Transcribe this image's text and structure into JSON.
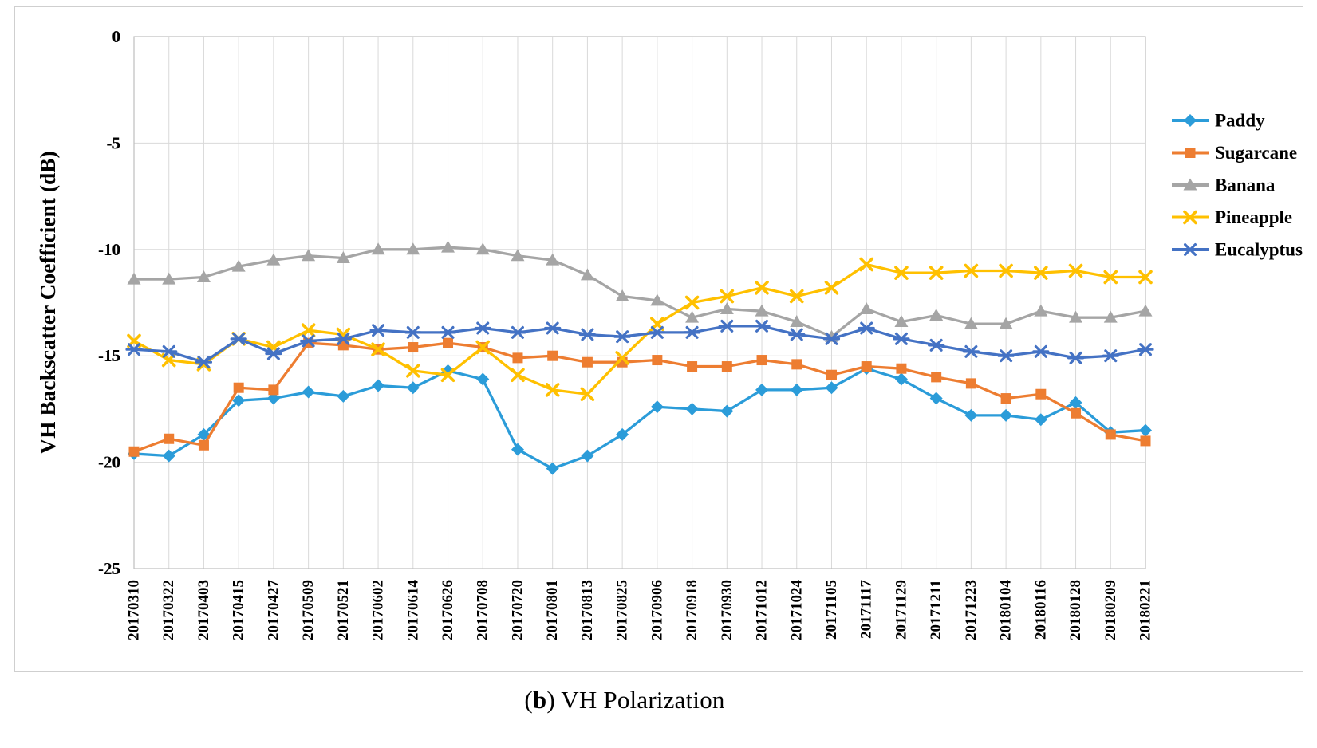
{
  "figure": {
    "caption": {
      "open": "(",
      "bold": "b",
      "rest": ") VH Polarization"
    }
  },
  "chart_data": {
    "type": "line",
    "title": "",
    "xlabel": "",
    "ylabel": "VH Backscatter Coefficient (dB)",
    "ylim": [
      -25,
      0
    ],
    "yticks": [
      0,
      -5,
      -10,
      -15,
      -20,
      -25
    ],
    "grid": true,
    "legend_position": "right",
    "categories": [
      "20170310",
      "20170322",
      "20170403",
      "20170415",
      "20170427",
      "20170509",
      "20170521",
      "20170602",
      "20170614",
      "20170626",
      "20170708",
      "20170720",
      "20170801",
      "20170813",
      "20170825",
      "20170906",
      "20170918",
      "20170930",
      "20171012",
      "20171024",
      "20171105",
      "20171117",
      "20171129",
      "20171211",
      "20171223",
      "20180104",
      "20180116",
      "20180128",
      "20180209",
      "20180221"
    ],
    "series": [
      {
        "name": "Paddy",
        "color": "#2B9CD9",
        "marker": "diamond",
        "values": [
          -19.6,
          -19.7,
          -18.7,
          -17.1,
          -17.0,
          -16.7,
          -16.9,
          -16.4,
          -16.5,
          -15.7,
          -16.1,
          -19.4,
          -20.3,
          -19.7,
          -18.7,
          -17.4,
          -17.5,
          -17.6,
          -16.6,
          -16.6,
          -16.5,
          -15.6,
          -16.1,
          -17.0,
          -17.8,
          -17.8,
          -18.0,
          -17.2,
          -18.6,
          -18.5
        ]
      },
      {
        "name": "Sugarcane",
        "color": "#ED7D31",
        "marker": "square",
        "values": [
          -19.5,
          -18.9,
          -19.2,
          -16.5,
          -16.6,
          -14.4,
          -14.5,
          -14.7,
          -14.6,
          -14.4,
          -14.6,
          -15.1,
          -15.0,
          -15.3,
          -15.3,
          -15.2,
          -15.5,
          -15.5,
          -15.2,
          -15.4,
          -15.9,
          -15.5,
          -15.6,
          -16.0,
          -16.3,
          -17.0,
          -16.8,
          -17.7,
          -18.7,
          -19.0
        ]
      },
      {
        "name": "Banana",
        "color": "#A5A5A5",
        "marker": "triangle",
        "values": [
          -11.4,
          -11.4,
          -11.3,
          -10.8,
          -10.5,
          -10.3,
          -10.4,
          -10.0,
          -10.0,
          -9.9,
          -10.0,
          -10.3,
          -10.5,
          -11.2,
          -12.2,
          -12.4,
          -13.2,
          -12.8,
          -12.9,
          -13.4,
          -14.1,
          -12.8,
          -13.4,
          -13.1,
          -13.5,
          -13.5,
          -12.9,
          -13.2,
          -13.2,
          -12.9
        ]
      },
      {
        "name": "Pineapple",
        "color": "#FFC000",
        "marker": "x",
        "values": [
          -14.3,
          -15.2,
          -15.4,
          -14.2,
          -14.6,
          -13.8,
          -14.0,
          -14.7,
          -15.7,
          -15.9,
          -14.6,
          -15.9,
          -16.6,
          -16.8,
          -15.1,
          -13.5,
          -12.5,
          -12.2,
          -11.8,
          -12.2,
          -11.8,
          -10.7,
          -11.1,
          -11.1,
          -11.0,
          -11.0,
          -11.1,
          -11.0,
          -11.3,
          -11.3
        ]
      },
      {
        "name": "Eucalyptus",
        "color": "#4472C4",
        "marker": "asterisk",
        "values": [
          -14.7,
          -14.8,
          -15.3,
          -14.2,
          -14.9,
          -14.3,
          -14.2,
          -13.8,
          -13.9,
          -13.9,
          -13.7,
          -13.9,
          -13.7,
          -14.0,
          -14.1,
          -13.9,
          -13.9,
          -13.6,
          -13.6,
          -14.0,
          -14.2,
          -13.7,
          -14.2,
          -14.5,
          -14.8,
          -15.0,
          -14.8,
          -15.1,
          -15.0,
          -14.7
        ]
      }
    ]
  }
}
